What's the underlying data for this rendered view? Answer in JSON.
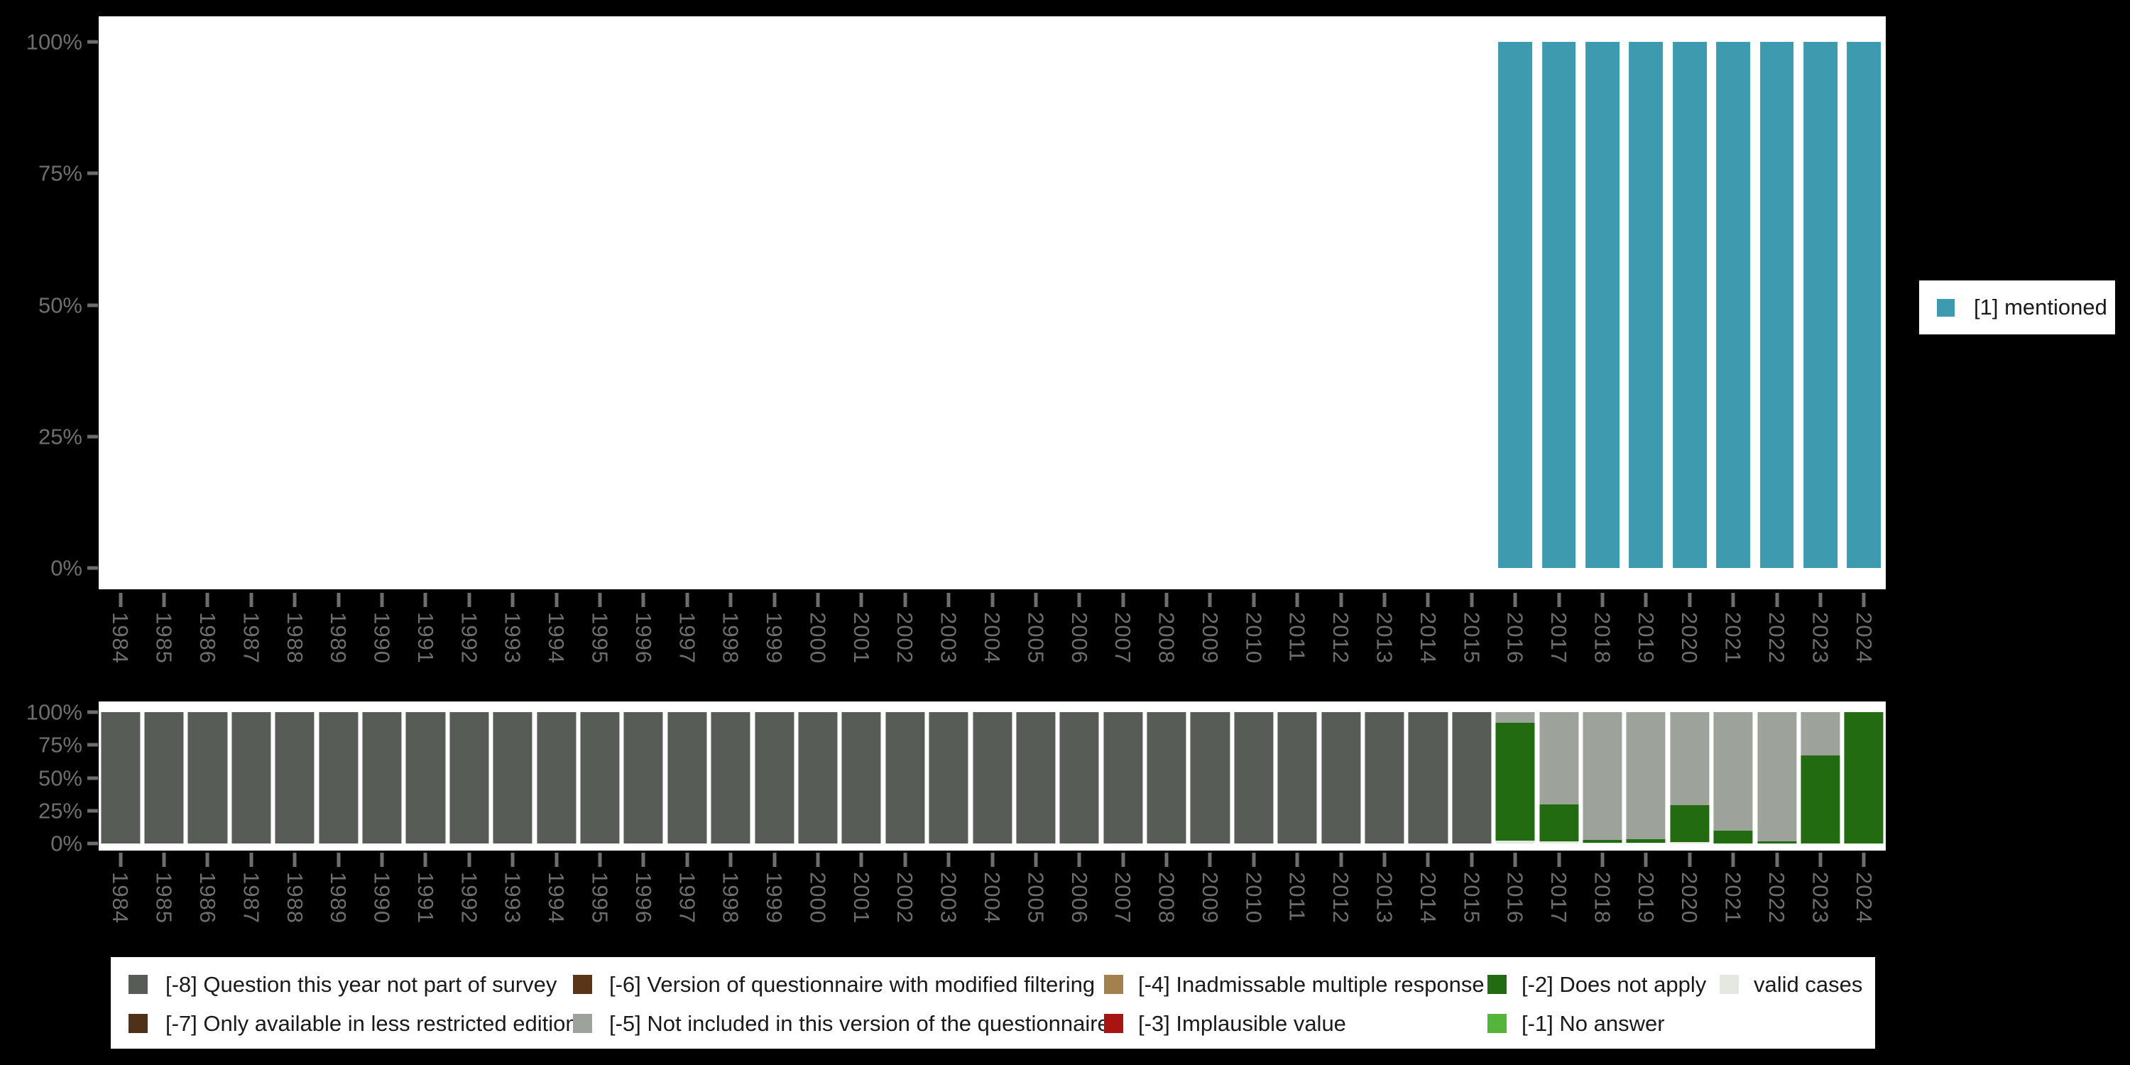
{
  "background_color": "#000000",
  "axis_text_color": "#6e6e6e",
  "legend_text_color": "#1a1a1a",
  "right_legend": {
    "label": "[1] mentioned",
    "color": "#3d9aaf"
  },
  "bottom_legend": {
    "items": [
      {
        "label": "[-8] Question this year not part of survey",
        "color": "#575d56",
        "row": 0,
        "col": 0
      },
      {
        "label": "[-7] Only available in less restricted edition",
        "color": "#4f3119",
        "row": 1,
        "col": 0
      },
      {
        "label": "[-6] Version of questionnaire with modified filtering",
        "color": "#5a3517",
        "row": 0,
        "col": 1
      },
      {
        "label": "[-5] Not included in this version of the questionnaire",
        "color": "#9da29a",
        "row": 1,
        "col": 1
      },
      {
        "label": "[-4] Inadmissable multiple response",
        "color": "#a5804f",
        "row": 0,
        "col": 2
      },
      {
        "label": "[-3] Implausible value",
        "color": "#a81510",
        "row": 1,
        "col": 2
      },
      {
        "label": "[-2] Does not apply",
        "color": "#226b10",
        "row": 0,
        "col": 3
      },
      {
        "label": "[-1] No answer",
        "color": "#55b53b",
        "row": 1,
        "col": 3
      },
      {
        "label": "valid cases",
        "color": "#e4e8e0",
        "row": 0,
        "col": 4
      }
    ]
  },
  "chart_data": [
    {
      "type": "bar",
      "stacked": true,
      "title": "",
      "xlabel": "",
      "ylabel": "",
      "ylim": [
        0,
        100
      ],
      "y_tick_labels": [
        "0%",
        "25%",
        "50%",
        "75%",
        "100%"
      ],
      "grid": false,
      "legend_position": "right",
      "categories": [
        1984,
        1985,
        1986,
        1987,
        1988,
        1989,
        1990,
        1991,
        1992,
        1993,
        1994,
        1995,
        1996,
        1997,
        1998,
        1999,
        2000,
        2001,
        2002,
        2003,
        2004,
        2005,
        2006,
        2007,
        2008,
        2009,
        2010,
        2011,
        2012,
        2013,
        2014,
        2015,
        2016,
        2017,
        2018,
        2019,
        2020,
        2021,
        2022,
        2023,
        2024
      ],
      "series": [
        {
          "name": "[1] mentioned",
          "color": "#3d9aaf",
          "values": [
            0,
            0,
            0,
            0,
            0,
            0,
            0,
            0,
            0,
            0,
            0,
            0,
            0,
            0,
            0,
            0,
            0,
            0,
            0,
            0,
            0,
            0,
            0,
            0,
            0,
            0,
            0,
            0,
            0,
            0,
            0,
            0,
            100,
            100,
            100,
            100,
            100,
            100,
            100,
            100,
            100
          ]
        }
      ]
    },
    {
      "type": "bar",
      "stacked": true,
      "title": "",
      "xlabel": "",
      "ylabel": "",
      "ylim": [
        0,
        100
      ],
      "y_tick_labels": [
        "0%",
        "25%",
        "50%",
        "75%",
        "100%"
      ],
      "grid": false,
      "legend_position": "bottom",
      "categories": [
        1984,
        1985,
        1986,
        1987,
        1988,
        1989,
        1990,
        1991,
        1992,
        1993,
        1994,
        1995,
        1996,
        1997,
        1998,
        1999,
        2000,
        2001,
        2002,
        2003,
        2004,
        2005,
        2006,
        2007,
        2008,
        2009,
        2010,
        2011,
        2012,
        2013,
        2014,
        2015,
        2016,
        2017,
        2018,
        2019,
        2020,
        2021,
        2022,
        2023,
        2024
      ],
      "series": [
        {
          "name": "valid cases",
          "color": "#e4e8e0",
          "values": [
            0,
            0,
            0,
            0,
            0,
            0,
            0,
            0,
            0,
            0,
            0,
            0,
            0,
            0,
            0,
            0,
            0,
            0,
            0,
            0,
            0,
            0,
            0,
            0,
            0,
            0,
            0,
            0,
            0,
            0,
            0,
            0,
            2,
            1.5,
            0.5,
            0.5,
            1,
            0,
            0,
            0,
            0
          ]
        },
        {
          "name": "[-2] Does not apply",
          "color": "#226b10",
          "values": [
            0,
            0,
            0,
            0,
            0,
            0,
            0,
            0,
            0,
            0,
            0,
            0,
            0,
            0,
            0,
            0,
            0,
            0,
            0,
            0,
            0,
            0,
            0,
            0,
            0,
            0,
            0,
            0,
            0,
            0,
            0,
            0,
            90,
            28.5,
            2,
            3,
            28,
            9.5,
            1.5,
            67,
            100
          ]
        },
        {
          "name": "[-5] Not included in this version of the questionnaire",
          "color": "#9da29a",
          "values": [
            0,
            0,
            0,
            0,
            0,
            0,
            0,
            0,
            0,
            0,
            0,
            0,
            0,
            0,
            0,
            0,
            0,
            0,
            0,
            0,
            0,
            0,
            0,
            0,
            0,
            0,
            0,
            0,
            0,
            0,
            0,
            0,
            8,
            70,
            97.5,
            96.5,
            71,
            90.5,
            98.5,
            33,
            0
          ]
        },
        {
          "name": "[-8] Question this year not part of survey",
          "color": "#575d56",
          "values": [
            100,
            100,
            100,
            100,
            100,
            100,
            100,
            100,
            100,
            100,
            100,
            100,
            100,
            100,
            100,
            100,
            100,
            100,
            100,
            100,
            100,
            100,
            100,
            100,
            100,
            100,
            100,
            100,
            100,
            100,
            100,
            100,
            0,
            0,
            0,
            0,
            0,
            0,
            0,
            0,
            0
          ]
        }
      ]
    }
  ]
}
